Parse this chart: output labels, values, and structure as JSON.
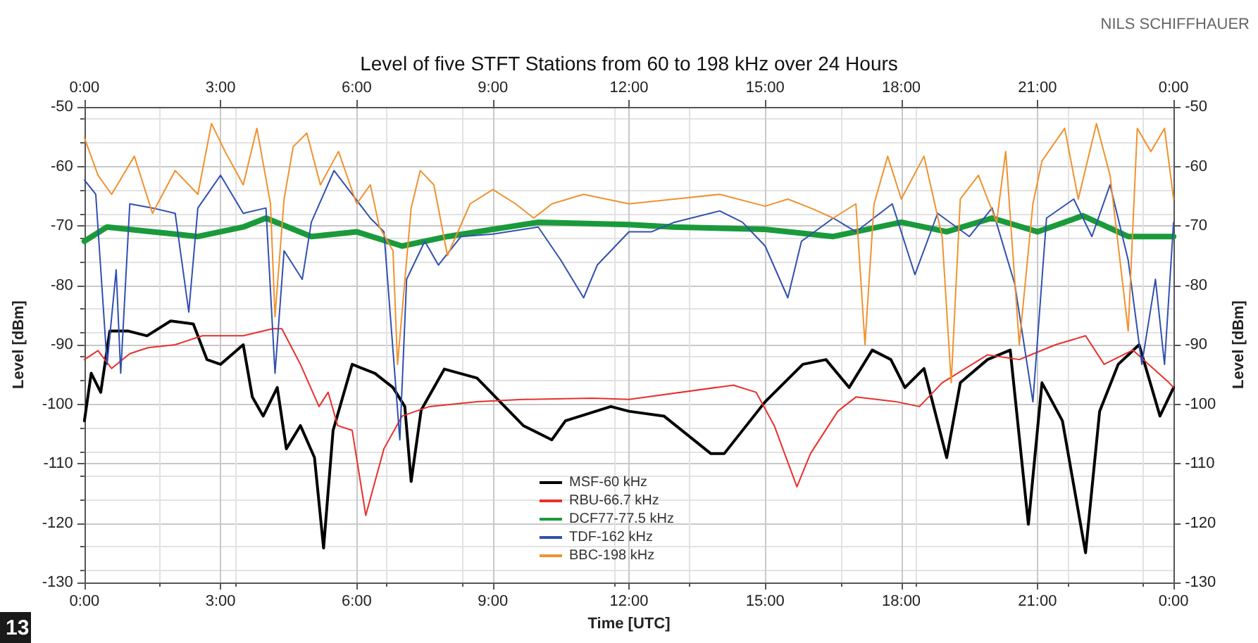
{
  "chart_data": {
    "type": "line",
    "title": "Level of five STFT Stations from 60 to 198 kHz over 24 Hours",
    "xlabel": "Time [UTC]",
    "ylabel": "Level [dBm]",
    "y2label": "Level [dBm]",
    "annotations": [
      "NILS SCHIFFHAUER",
      "13"
    ],
    "xlim": [
      0,
      24
    ],
    "xticks": [
      {
        "value": 0,
        "label": "0:00"
      },
      {
        "value": 3,
        "label": "3:00"
      },
      {
        "value": 6,
        "label": "6:00"
      },
      {
        "value": 9,
        "label": "9:00"
      },
      {
        "value": 12,
        "label": "12:00"
      },
      {
        "value": 15,
        "label": "15:00"
      },
      {
        "value": 18,
        "label": "18:00"
      },
      {
        "value": 21,
        "label": "21:00"
      },
      {
        "value": 24,
        "label": "0:00"
      }
    ],
    "x2lim": [
      0,
      24
    ],
    "x2ticks": [
      {
        "value": 0,
        "label": "0:00"
      },
      {
        "value": 3,
        "label": "3:00"
      },
      {
        "value": 6,
        "label": "6:00"
      },
      {
        "value": 9,
        "label": "9:00"
      },
      {
        "value": 12,
        "label": "12:00"
      },
      {
        "value": 15,
        "label": "15:00"
      },
      {
        "value": 18,
        "label": "18:00"
      },
      {
        "value": 21,
        "label": "21:00"
      },
      {
        "value": 24,
        "label": "0:00"
      }
    ],
    "ylim": [
      -130,
      -50
    ],
    "yticks": [
      -130,
      -120,
      -110,
      -100,
      -90,
      -80,
      -70,
      -60,
      -50
    ],
    "y2lim": [
      -130,
      -50
    ],
    "y2ticks": [
      -130,
      -120,
      -110,
      -100,
      -90,
      -80,
      -70,
      -60,
      -50
    ],
    "grid": true,
    "legend": "bottom",
    "marker": "none",
    "line_style": "solid",
    "series": [
      {
        "name": "MSF-60 kHz",
        "color": "#000000",
        "x": [
          0,
          0.15,
          0.36,
          0.56,
          0.97,
          1.38,
          1.9,
          2.4,
          2.7,
          3.0,
          3.5,
          3.7,
          3.94,
          4.25,
          4.45,
          4.76,
          5.07,
          5.27,
          5.48,
          5.9,
          6.4,
          6.8,
          7.06,
          7.2,
          7.42,
          7.93,
          8.65,
          9.16,
          9.67,
          10.3,
          10.6,
          11.6,
          12,
          12.77,
          13.8,
          14.1,
          15.0,
          15.83,
          16.34,
          16.85,
          17.36,
          17.77,
          18.08,
          18.5,
          19.0,
          19.3,
          19.9,
          20.4,
          20.8,
          21.1,
          21.55,
          22.06,
          22.37,
          22.78,
          23.24,
          23.7,
          24
        ],
        "values": [
          -102.8,
          -94.8,
          -98,
          -87.7,
          -87.7,
          -88.5,
          -86,
          -86.5,
          -92.5,
          -93.3,
          -90,
          -98.8,
          -102,
          -97.2,
          -107.5,
          -103.6,
          -109,
          -124.2,
          -104.4,
          -93.3,
          -94.8,
          -97.2,
          -100.4,
          -113,
          -101,
          -94.1,
          -95.6,
          -99.6,
          -103.6,
          -106,
          -102.8,
          -100.4,
          -101.2,
          -102,
          -108.3,
          -108.3,
          -99.6,
          -93.3,
          -92.5,
          -97.2,
          -90.9,
          -92.5,
          -97.2,
          -94,
          -109,
          -96.4,
          -92.5,
          -90.9,
          -120.2,
          -96.4,
          -102.8,
          -125,
          -101.2,
          -93.3,
          -90,
          -102,
          -97.2
        ]
      },
      {
        "name": "RBU-66.7 kHz",
        "color": "#e8302a",
        "x": [
          0,
          0.3,
          0.6,
          1.0,
          1.4,
          2.0,
          2.6,
          3.5,
          4.15,
          4.35,
          4.76,
          5.17,
          5.37,
          5.58,
          5.9,
          6.2,
          6.6,
          7.0,
          7.6,
          8.65,
          9.67,
          11.2,
          12,
          14.3,
          14.8,
          15.2,
          15.7,
          16.0,
          16.6,
          17.0,
          17.9,
          18.4,
          18.9,
          19.9,
          20.6,
          21.4,
          22.06,
          22.47,
          23.1,
          23.9,
          24
        ],
        "values": [
          -92.5,
          -91,
          -94,
          -91.5,
          -90.5,
          -90,
          -88.5,
          -88.5,
          -87.3,
          -87.3,
          -93.3,
          -100.4,
          -98,
          -103.6,
          -104.4,
          -118.7,
          -107.5,
          -102,
          -100.4,
          -99.6,
          -99.2,
          -99,
          -99.2,
          -96.8,
          -98,
          -103.6,
          -113.9,
          -108.3,
          -101.2,
          -98.8,
          -99.6,
          -100.4,
          -96.4,
          -91.7,
          -92.5,
          -90,
          -88.5,
          -93.3,
          -90.9,
          -96.4,
          -97.2
        ]
      },
      {
        "name": "DCF77-77.5 kHz",
        "color": "#1a9a3a",
        "x": [
          0,
          0.5,
          1.5,
          2.5,
          3.5,
          4,
          5,
          6,
          7,
          8,
          9,
          10,
          12,
          13,
          15,
          16.5,
          18,
          19,
          20,
          21,
          22,
          23,
          24
        ],
        "values": [
          -72.6,
          -70.2,
          -71,
          -71.8,
          -70.2,
          -68.7,
          -71.8,
          -71,
          -73.4,
          -71.8,
          -70.6,
          -69.4,
          -69.8,
          -70.2,
          -70.6,
          -71.8,
          -69.4,
          -71,
          -68.7,
          -71,
          -68.3,
          -71.8,
          -71.8
        ]
      },
      {
        "name": "TDF-162 kHz",
        "color": "#3050b0",
        "x": [
          0,
          0.25,
          0.5,
          0.7,
          0.8,
          1.0,
          1.5,
          2.0,
          2.3,
          2.5,
          3.0,
          3.5,
          4.0,
          4.2,
          4.4,
          4.8,
          5.0,
          5.5,
          5.9,
          6.3,
          6.6,
          6.95,
          7.1,
          7.5,
          7.8,
          8.3,
          9,
          10,
          10.5,
          11,
          11.3,
          12,
          12.5,
          13,
          14,
          14.5,
          15.0,
          15.5,
          15.8,
          16.5,
          17,
          17.8,
          18.3,
          18.8,
          19.5,
          20,
          20.5,
          20.9,
          21.2,
          21.8,
          22.2,
          22.6,
          23.0,
          23.3,
          23.6,
          23.8,
          24
        ],
        "values": [
          -62.3,
          -64.7,
          -93.3,
          -77.4,
          -94.8,
          -66.3,
          -67,
          -67.9,
          -84.5,
          -67,
          -61.5,
          -67.9,
          -67,
          -94.8,
          -74.2,
          -79,
          -69.4,
          -60.7,
          -64.7,
          -68.7,
          -71,
          -106,
          -79,
          -72.6,
          -76.6,
          -71.8,
          -71.4,
          -70.2,
          -75.8,
          -82.1,
          -76.6,
          -71,
          -71,
          -69.4,
          -67.5,
          -69.4,
          -73.4,
          -82.1,
          -72.6,
          -68.7,
          -71,
          -66.3,
          -78.2,
          -67.9,
          -71.8,
          -67,
          -79.8,
          -99.6,
          -68.7,
          -65.5,
          -71.8,
          -63.1,
          -75.8,
          -93.3,
          -79,
          -93.3,
          -69.4
        ]
      },
      {
        "name": "BBC-198 kHz",
        "color": "#f0922e",
        "x": [
          0,
          0.3,
          0.6,
          1.1,
          1.5,
          2.0,
          2.5,
          2.8,
          3.1,
          3.5,
          3.8,
          4.1,
          4.2,
          4.4,
          4.6,
          4.9,
          5.2,
          5.6,
          6.0,
          6.3,
          6.5,
          6.8,
          6.9,
          7.2,
          7.4,
          7.7,
          8.0,
          8.5,
          9.0,
          9.5,
          9.9,
          10.3,
          11.0,
          12,
          13,
          14,
          15,
          15.5,
          16,
          16.5,
          17,
          17.2,
          17.4,
          17.7,
          18,
          18.5,
          18.9,
          19.1,
          19.3,
          19.7,
          20.1,
          20.3,
          20.6,
          20.9,
          21.1,
          21.6,
          21.9,
          22.3,
          22.6,
          23.0,
          23.2,
          23.5,
          23.8,
          24
        ],
        "values": [
          -55.2,
          -61.5,
          -64.7,
          -58.3,
          -67.9,
          -60.7,
          -64.7,
          -52.8,
          -57.5,
          -63.1,
          -53.6,
          -66.3,
          -85.3,
          -65.5,
          -56.7,
          -54.4,
          -63.1,
          -57.5,
          -66.3,
          -63.1,
          -70.2,
          -74.2,
          -93.3,
          -67,
          -60.7,
          -63.1,
          -75,
          -66.3,
          -63.9,
          -66.3,
          -68.7,
          -66.3,
          -64.7,
          -66.3,
          -65.5,
          -64.7,
          -66.7,
          -65.5,
          -67,
          -68.7,
          -66.3,
          -90,
          -66.3,
          -58.3,
          -65.5,
          -58.3,
          -71.8,
          -96.4,
          -65.5,
          -61.5,
          -69.4,
          -57.5,
          -90,
          -66.3,
          -59.1,
          -53.6,
          -65.5,
          -52.8,
          -61.5,
          -87.7,
          -53.6,
          -57.5,
          -53.6,
          -65.5
        ]
      }
    ]
  }
}
